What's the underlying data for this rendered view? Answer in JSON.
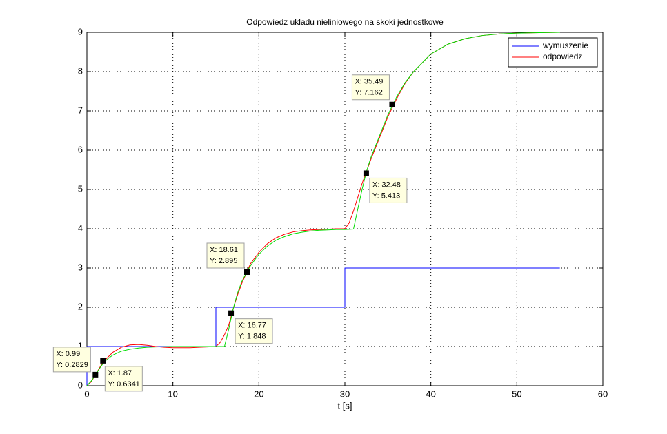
{
  "chart_data": {
    "type": "line",
    "title": "Odpowiedz ukladu nieliniowego na skoki jednostkowe",
    "x_label": "t [s]",
    "xlim": [
      0,
      60
    ],
    "xticks": [
      0,
      10,
      20,
      30,
      40,
      50,
      60
    ],
    "ylim": [
      0,
      9
    ],
    "yticks": [
      0,
      1,
      2,
      3,
      4,
      5,
      6,
      7,
      8,
      9
    ],
    "grid": true,
    "legend": "upper right",
    "series": [
      {
        "name": "wymuszenie",
        "color": "#0000ff",
        "x": [
          0,
          0,
          15,
          15,
          30,
          30,
          55
        ],
        "values": [
          0,
          1,
          1,
          2,
          2,
          3,
          3
        ]
      },
      {
        "name": "odpowiedz",
        "color": "#ff0000",
        "x": [
          0,
          0.5,
          1,
          1.5,
          2,
          3,
          4,
          5,
          6,
          7,
          8,
          9,
          10,
          11,
          12,
          13,
          14,
          15,
          15.5,
          16,
          16.5,
          17,
          17.5,
          18,
          18.6,
          19,
          20,
          21,
          22,
          23,
          24,
          25,
          26,
          27,
          28,
          29,
          30,
          30.5,
          31,
          31.5,
          32,
          32.5,
          33,
          34,
          35,
          36,
          37,
          38,
          40,
          42,
          44,
          46,
          48,
          50,
          52,
          55
        ],
        "values": [
          0,
          0.1,
          0.28,
          0.47,
          0.63,
          0.85,
          0.98,
          1.04,
          1.05,
          1.03,
          1.0,
          0.98,
          0.97,
          0.97,
          0.97,
          0.98,
          0.99,
          1.0,
          1.1,
          1.3,
          1.55,
          1.95,
          2.3,
          2.6,
          2.9,
          3.1,
          3.4,
          3.62,
          3.77,
          3.86,
          3.92,
          3.95,
          3.97,
          3.98,
          3.99,
          4.0,
          4.0,
          4.15,
          4.45,
          4.8,
          5.15,
          5.45,
          5.75,
          6.3,
          6.85,
          7.3,
          7.7,
          8.0,
          8.45,
          8.7,
          8.84,
          8.92,
          8.96,
          8.98,
          8.99,
          9.0
        ]
      },
      {
        "color": "#00dd00",
        "x": [
          0,
          0.5,
          1,
          1.5,
          2,
          2.5,
          3,
          4,
          5,
          6,
          7,
          8,
          10,
          12,
          14,
          15,
          16,
          16.5,
          17,
          17.5,
          18,
          18.6,
          19,
          20,
          21,
          22,
          23,
          24,
          25,
          26,
          27,
          28,
          29,
          30,
          31,
          31.5,
          32,
          32.5,
          33,
          34,
          35,
          36,
          37,
          38,
          40,
          42,
          44,
          46,
          48,
          50,
          52,
          55
        ],
        "values": [
          0,
          0.12,
          0.28,
          0.45,
          0.6,
          0.7,
          0.78,
          0.88,
          0.93,
          0.96,
          0.98,
          0.99,
          1.0,
          1.0,
          1.0,
          1.0,
          1.0,
          1.45,
          1.95,
          2.35,
          2.65,
          2.9,
          3.05,
          3.35,
          3.56,
          3.71,
          3.8,
          3.87,
          3.91,
          3.94,
          3.96,
          3.97,
          3.98,
          3.98,
          3.99,
          4.5,
          5.0,
          5.45,
          5.8,
          6.35,
          6.9,
          7.35,
          7.72,
          8.0,
          8.45,
          8.7,
          8.84,
          8.92,
          8.96,
          8.98,
          8.99,
          9.0
        ]
      }
    ],
    "annotations": [
      {
        "x": 0.99,
        "y": 0.2829,
        "x_label": "X: 0.99",
        "y_label": "Y: 0.2829"
      },
      {
        "x": 1.87,
        "y": 0.6341,
        "x_label": "X: 1.87",
        "y_label": "Y: 0.6341"
      },
      {
        "x": 16.77,
        "y": 1.848,
        "x_label": "X: 16.77",
        "y_label": "Y: 1.848"
      },
      {
        "x": 18.61,
        "y": 2.895,
        "x_label": "X: 18.61",
        "y_label": "Y: 2.895"
      },
      {
        "x": 32.48,
        "y": 5.413,
        "x_label": "X: 32.48",
        "y_label": "Y: 5.413"
      },
      {
        "x": 35.49,
        "y": 7.162,
        "x_label": "X: 35.49",
        "y_label": "Y: 7.162"
      }
    ]
  }
}
